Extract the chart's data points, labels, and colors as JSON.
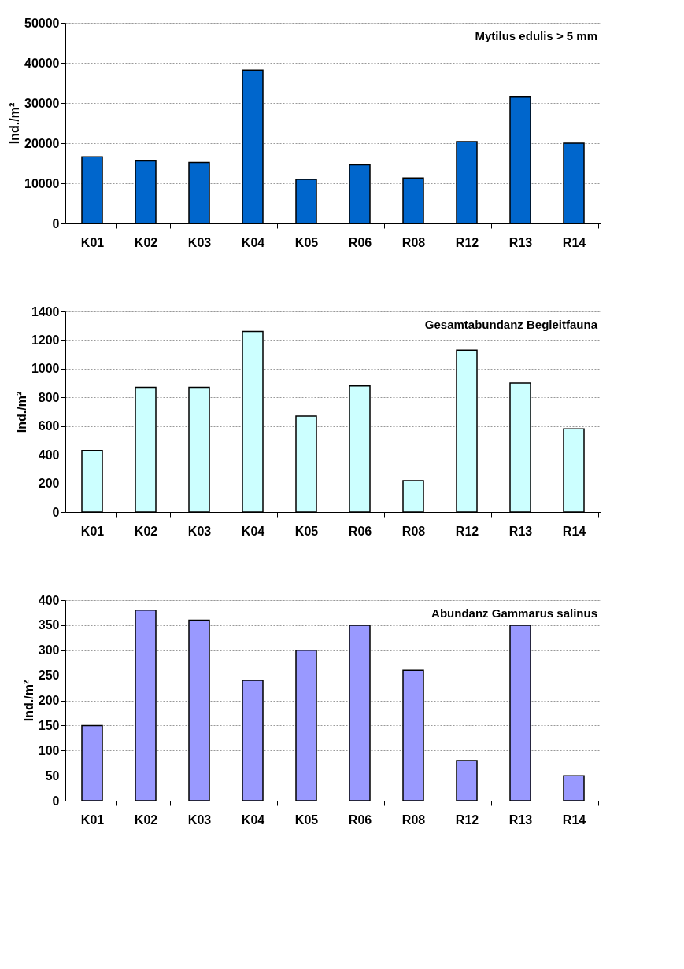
{
  "chart_data": [
    {
      "type": "bar",
      "title": "Mytilus edulis > 5 mm",
      "ylabel": "Ind./m²",
      "categories": [
        "K01",
        "K02",
        "K03",
        "K04",
        "K05",
        "R06",
        "R08",
        "R12",
        "R13",
        "R14"
      ],
      "values": [
        16600,
        15600,
        15200,
        38200,
        11000,
        14600,
        11300,
        20400,
        31600,
        20000
      ],
      "color": "#0066cc",
      "ylim": [
        0,
        50000
      ],
      "yticks": [
        0,
        10000,
        20000,
        30000,
        40000,
        50000
      ],
      "grid": "y"
    },
    {
      "type": "bar",
      "title": "Gesamtabundanz Begleitfauna",
      "ylabel": "Ind./m²",
      "categories": [
        "K01",
        "K02",
        "K03",
        "K04",
        "K05",
        "R06",
        "R08",
        "R12",
        "R13",
        "R14"
      ],
      "values": [
        430,
        870,
        870,
        1260,
        670,
        880,
        220,
        1130,
        900,
        580
      ],
      "color": "#ccffff",
      "ylim": [
        0,
        1400
      ],
      "yticks": [
        0,
        200,
        400,
        600,
        800,
        1000,
        1200,
        1400
      ],
      "grid": "y"
    },
    {
      "type": "bar",
      "title": "Abundanz Gammarus salinus",
      "ylabel": "Ind./m²",
      "categories": [
        "K01",
        "K02",
        "K03",
        "K04",
        "K05",
        "R06",
        "R08",
        "R12",
        "R13",
        "R14"
      ],
      "values": [
        150,
        380,
        360,
        240,
        300,
        350,
        260,
        80,
        350,
        50
      ],
      "color": "#9999ff",
      "ylim": [
        0,
        400
      ],
      "yticks": [
        0,
        50,
        100,
        150,
        200,
        250,
        300,
        350,
        400
      ],
      "grid": "y"
    }
  ]
}
